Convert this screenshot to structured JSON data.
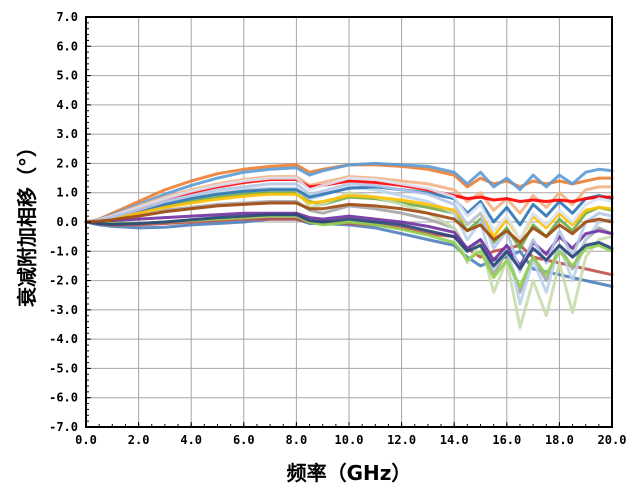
{
  "chart_data": {
    "type": "line",
    "xlabel": "频率（GHz）",
    "ylabel": "衰减附加相移（°）",
    "xlim": [
      0,
      20
    ],
    "ylim": [
      -7,
      7
    ],
    "x_ticks": [
      "0.0",
      "2.0",
      "4.0",
      "6.0",
      "8.0",
      "10.0",
      "12.0",
      "14.0",
      "16.0",
      "18.0",
      "20.0"
    ],
    "y_ticks": [
      "7.0",
      "6.0",
      "5.0",
      "4.0",
      "3.0",
      "2.0",
      "1.0",
      "0.0",
      "-1.0",
      "-2.0",
      "-3.0",
      "-4.0",
      "-5.0",
      "-6.0",
      "-7.0"
    ],
    "grid": true,
    "legend": "none",
    "x": [
      0,
      0.5,
      1,
      2,
      3,
      4,
      5,
      6,
      7,
      8,
      8.5,
      9,
      10,
      11,
      12,
      13,
      14,
      14.5,
      15,
      15.5,
      16,
      16.5,
      17,
      17.5,
      18,
      18.5,
      19,
      19.5,
      20
    ],
    "series": [
      {
        "color": "#4f81bd",
        "values": [
          0,
          -0.1,
          -0.15,
          -0.2,
          -0.18,
          -0.1,
          -0.05,
          0,
          0.1,
          0.1,
          -0.05,
          -0.05,
          -0.1,
          -0.2,
          -0.4,
          -0.6,
          -0.8,
          -1.2,
          -1.5,
          -1.3,
          -1.2,
          -1.0,
          -1.6,
          -1.7,
          -1.8,
          -1.9,
          -2.0,
          -2.1,
          -2.2
        ]
      },
      {
        "color": "#c0504d",
        "values": [
          0,
          -0.05,
          -0.1,
          -0.1,
          -0.05,
          0,
          0.05,
          0.1,
          0.1,
          0.1,
          0.0,
          0.0,
          -0.05,
          -0.1,
          -0.2,
          -0.4,
          -0.5,
          -0.9,
          -1.2,
          -1.0,
          -0.9,
          -0.8,
          -1.2,
          -1.3,
          -1.4,
          -1.5,
          -1.6,
          -1.7,
          -1.8
        ]
      },
      {
        "color": "#ed7d31",
        "values": [
          0,
          0.1,
          0.3,
          0.7,
          1.1,
          1.4,
          1.65,
          1.8,
          1.9,
          1.95,
          1.7,
          1.8,
          1.95,
          1.95,
          1.9,
          1.8,
          1.6,
          1.2,
          1.5,
          1.3,
          1.4,
          1.2,
          1.4,
          1.3,
          1.4,
          1.3,
          1.4,
          1.5,
          1.5
        ]
      },
      {
        "color": "#5b9bd5",
        "values": [
          0,
          0.08,
          0.25,
          0.6,
          0.95,
          1.25,
          1.5,
          1.7,
          1.8,
          1.85,
          1.6,
          1.75,
          1.95,
          2.0,
          1.95,
          1.9,
          1.7,
          1.3,
          1.7,
          1.2,
          1.5,
          1.1,
          1.6,
          1.2,
          1.6,
          1.3,
          1.7,
          1.8,
          1.75
        ]
      },
      {
        "color": "#70ad47",
        "values": [
          0,
          0.05,
          0.15,
          0.35,
          0.55,
          0.7,
          0.85,
          0.95,
          1.0,
          1.0,
          0.7,
          0.6,
          0.85,
          0.8,
          0.65,
          0.5,
          0.3,
          -0.3,
          0.1,
          -0.7,
          -0.2,
          -0.9,
          -0.1,
          -0.5,
          0.1,
          -0.3,
          0.3,
          0.5,
          0.4
        ]
      },
      {
        "color": "#a5a5a5",
        "values": [
          0,
          0.02,
          0.1,
          0.25,
          0.4,
          0.5,
          0.6,
          0.65,
          0.7,
          0.7,
          0.4,
          0.3,
          0.55,
          0.45,
          0.3,
          0.1,
          -0.2,
          -1.0,
          -0.6,
          -1.8,
          -1.0,
          -2.4,
          -1.2,
          -2.0,
          -0.8,
          -1.6,
          -0.6,
          -0.2,
          -0.4
        ]
      },
      {
        "color": "#bcd3ea",
        "values": [
          0,
          0.05,
          0.15,
          0.4,
          0.65,
          0.85,
          1.0,
          1.1,
          1.15,
          1.15,
          0.8,
          0.9,
          1.2,
          1.1,
          0.9,
          0.7,
          0.3,
          -0.6,
          0.0,
          -1.6,
          -0.8,
          -2.8,
          -1.3,
          -2.4,
          -0.8,
          -2.0,
          -0.6,
          0.0,
          0.1
        ]
      },
      {
        "color": "#c9dcae",
        "values": [
          0,
          0.05,
          0.15,
          0.4,
          0.6,
          0.8,
          0.95,
          1.05,
          1.1,
          1.1,
          0.5,
          0.6,
          1.0,
          0.85,
          0.6,
          0.3,
          -0.2,
          -1.4,
          -0.7,
          -2.4,
          -1.3,
          -3.6,
          -2.0,
          -3.2,
          -1.4,
          -3.1,
          -1.2,
          -0.6,
          -0.5
        ]
      },
      {
        "color": "#f4b183",
        "values": [
          0,
          0.08,
          0.22,
          0.55,
          0.85,
          1.1,
          1.3,
          1.45,
          1.55,
          1.55,
          1.25,
          1.35,
          1.55,
          1.5,
          1.4,
          1.3,
          1.1,
          0.7,
          1.0,
          0.4,
          0.8,
          0.3,
          0.9,
          0.5,
          1.0,
          0.6,
          1.1,
          1.2,
          1.2
        ]
      },
      {
        "color": "#7030a0",
        "values": [
          0,
          0.0,
          0.05,
          0.1,
          0.15,
          0.2,
          0.25,
          0.3,
          0.3,
          0.3,
          0.15,
          0.1,
          0.2,
          0.1,
          0.0,
          -0.15,
          -0.35,
          -0.9,
          -0.6,
          -1.3,
          -0.8,
          -1.5,
          -0.7,
          -1.1,
          -0.5,
          -0.9,
          -0.4,
          -0.3,
          -0.4
        ]
      },
      {
        "color": "#2e75b6",
        "values": [
          0,
          0.05,
          0.15,
          0.35,
          0.6,
          0.8,
          0.95,
          1.05,
          1.1,
          1.1,
          0.85,
          0.95,
          1.15,
          1.2,
          1.1,
          1.0,
          0.8,
          0.3,
          0.7,
          0.0,
          0.5,
          -0.1,
          0.6,
          0.2,
          0.7,
          0.3,
          0.8,
          0.9,
          0.8
        ]
      },
      {
        "color": "#ffc000",
        "values": [
          0,
          0.04,
          0.12,
          0.3,
          0.5,
          0.65,
          0.78,
          0.88,
          0.95,
          0.95,
          0.65,
          0.7,
          0.9,
          0.85,
          0.75,
          0.6,
          0.4,
          -0.1,
          0.3,
          -0.5,
          0.1,
          -0.6,
          0.2,
          -0.2,
          0.3,
          -0.1,
          0.4,
          0.5,
          0.45
        ]
      },
      {
        "color": "#ff0000",
        "values": [
          0,
          0.06,
          0.18,
          0.45,
          0.75,
          1.0,
          1.2,
          1.35,
          1.45,
          1.45,
          1.2,
          1.25,
          1.4,
          1.35,
          1.25,
          1.1,
          0.9,
          0.8,
          0.85,
          0.75,
          0.8,
          0.7,
          0.75,
          0.7,
          0.75,
          0.7,
          0.8,
          0.85,
          0.85
        ]
      },
      {
        "color": "#92d050",
        "values": [
          0,
          0.0,
          -0.05,
          -0.05,
          0.0,
          0.05,
          0.1,
          0.15,
          0.2,
          0.2,
          0.0,
          -0.1,
          0.0,
          -0.1,
          -0.25,
          -0.45,
          -0.7,
          -1.3,
          -1.0,
          -1.9,
          -1.3,
          -2.2,
          -1.2,
          -1.8,
          -1.0,
          -1.5,
          -0.9,
          -0.8,
          -1.0
        ]
      },
      {
        "color": "#dae3f3",
        "values": [
          0,
          0.07,
          0.2,
          0.5,
          0.8,
          1.05,
          1.25,
          1.4,
          1.5,
          1.5,
          1.1,
          1.25,
          1.5,
          1.45,
          1.3,
          1.15,
          0.85,
          0.2,
          0.6,
          -0.3,
          0.2,
          -0.6,
          0.3,
          -0.1,
          0.4,
          0.0,
          0.6,
          0.8,
          0.7
        ]
      },
      {
        "color": "#b4c7e7",
        "values": [
          0,
          0.06,
          0.17,
          0.42,
          0.7,
          0.9,
          1.1,
          1.2,
          1.3,
          1.3,
          0.95,
          1.05,
          1.3,
          1.25,
          1.1,
          0.95,
          0.6,
          -0.1,
          0.3,
          -0.9,
          -0.3,
          -1.7,
          -0.6,
          -1.4,
          -0.3,
          -1.2,
          0.0,
          0.3,
          0.2
        ]
      },
      {
        "color": "#264478",
        "values": [
          0,
          -0.05,
          -0.08,
          -0.05,
          0.0,
          0.08,
          0.15,
          0.2,
          0.25,
          0.25,
          0.05,
          0.0,
          0.1,
          0.0,
          -0.1,
          -0.3,
          -0.5,
          -1.0,
          -0.8,
          -1.5,
          -1.0,
          -1.6,
          -0.9,
          -1.3,
          -0.8,
          -1.2,
          -0.8,
          -0.7,
          -0.9
        ]
      },
      {
        "color": "#9e480e",
        "values": [
          0,
          0.03,
          0.08,
          0.2,
          0.35,
          0.45,
          0.55,
          0.6,
          0.65,
          0.65,
          0.45,
          0.45,
          0.6,
          0.55,
          0.45,
          0.3,
          0.1,
          -0.3,
          -0.1,
          -0.6,
          -0.3,
          -0.7,
          -0.2,
          -0.5,
          -0.1,
          -0.4,
          0.0,
          0.1,
          0.0
        ]
      }
    ]
  }
}
